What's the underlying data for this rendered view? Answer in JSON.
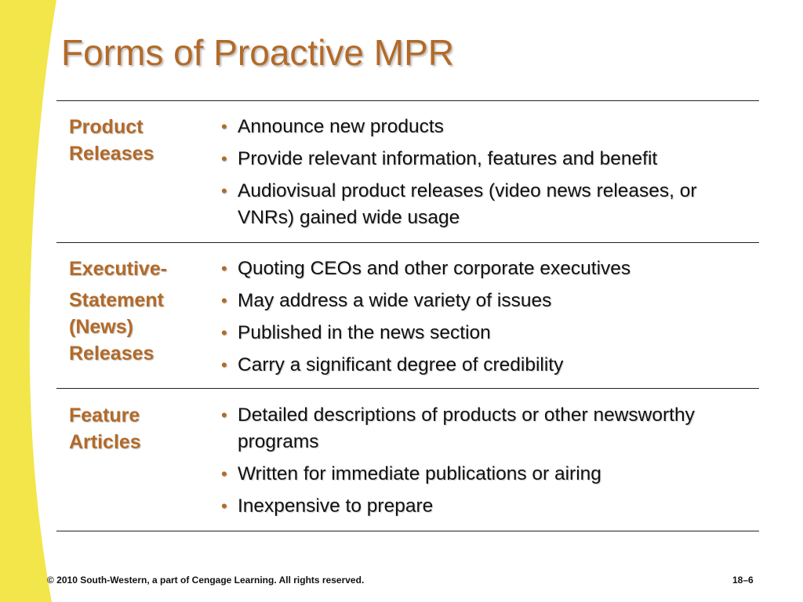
{
  "slide": {
    "title": "Forms of Proactive MPR",
    "colors": {
      "accent": "#b36a28",
      "band": "#f2e64b",
      "text": "#111111"
    }
  },
  "rows": [
    {
      "label_lines": [
        "Product",
        "Releases"
      ],
      "bullets": [
        "Announce new products",
        "Provide relevant information, features and benefit",
        "Audiovisual product releases (video news releases, or VNRs) gained wide usage"
      ]
    },
    {
      "label_lines": [
        "Executive-",
        "Statement",
        "(News)",
        "Releases"
      ],
      "bullets": [
        "Quoting CEOs and other corporate executives",
        "May address a wide variety of issues",
        "Published in the news section",
        "Carry a significant degree of credibility"
      ]
    },
    {
      "label_lines": [
        "Feature",
        "Articles"
      ],
      "bullets": [
        "Detailed descriptions of products or other newsworthy programs",
        "Written for immediate publications or airing",
        "Inexpensive to prepare"
      ]
    }
  ],
  "footer": {
    "copyright": "© 2010 South-Western, a part of Cengage Learning. All rights reserved.",
    "page_number": "18–6"
  }
}
